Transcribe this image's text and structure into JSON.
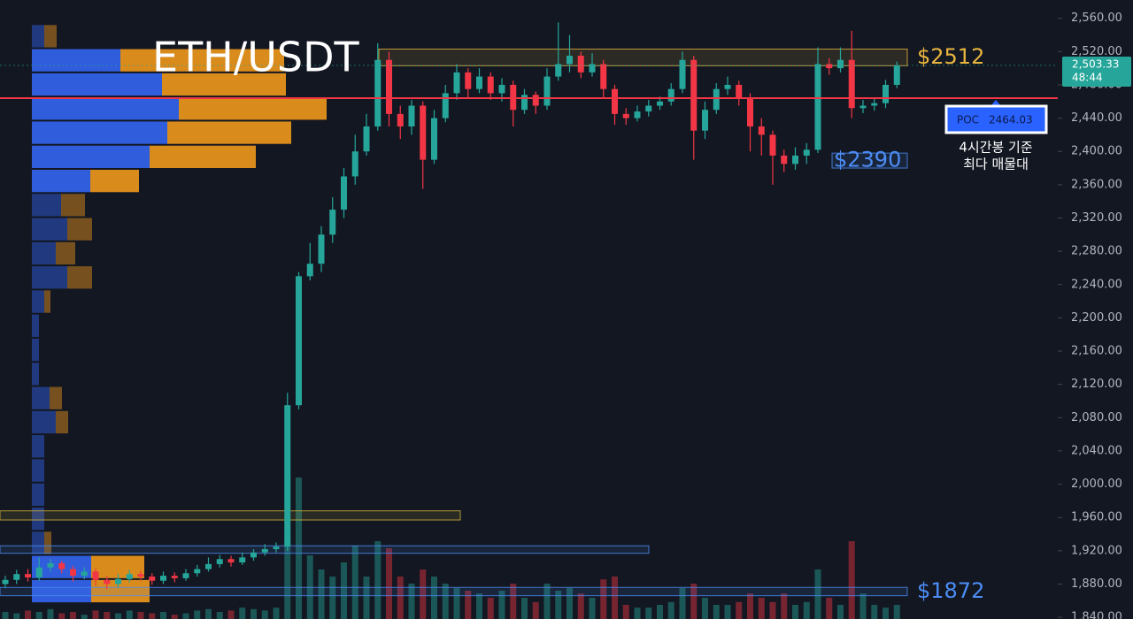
{
  "chart_data": {
    "type": "candlestick",
    "title": "ETH/USDT",
    "ylim": [
      1838,
      2582
    ],
    "yticks": [
      {
        "value": 1840,
        "label": "1,840.00"
      },
      {
        "value": 1880,
        "label": "1,880.00"
      },
      {
        "value": 1920,
        "label": "1,920.00"
      },
      {
        "value": 1960,
        "label": "1,960.00"
      },
      {
        "value": 2000,
        "label": "2,000.00"
      },
      {
        "value": 2040,
        "label": "2,040.00"
      },
      {
        "value": 2080,
        "label": "2,080.00"
      },
      {
        "value": 2120,
        "label": "2,120.00"
      },
      {
        "value": 2160,
        "label": "2,160.00"
      },
      {
        "value": 2200,
        "label": "2,200.00"
      },
      {
        "value": 2240,
        "label": "2,240.00"
      },
      {
        "value": 2280,
        "label": "2,280.00"
      },
      {
        "value": 2320,
        "label": "2,320.00"
      },
      {
        "value": 2360,
        "label": "2,360.00"
      },
      {
        "value": 2400,
        "label": "2,400.00"
      },
      {
        "value": 2440,
        "label": "2,440.00"
      },
      {
        "value": 2480,
        "label": "2,480.00"
      },
      {
        "value": 2520,
        "label": "2,520.00"
      },
      {
        "value": 2560,
        "label": "2,560.00"
      }
    ],
    "up_color": "#26a69a",
    "down_color": "#f23645",
    "open": [
      1880,
      1885,
      1892,
      1888,
      1900,
      1905,
      1898,
      1890,
      1895,
      1885,
      1880,
      1886,
      1892,
      1889,
      1884,
      1890,
      1887,
      1893,
      1898,
      1904,
      1910,
      1906,
      1912,
      1918,
      1922,
      1925,
      2095,
      2250,
      2265,
      2300,
      2330,
      2370,
      2400,
      2430,
      2510,
      2445,
      2430,
      2455,
      2390,
      2440,
      2470,
      2495,
      2475,
      2490,
      2470,
      2480,
      2450,
      2468,
      2455,
      2490,
      2505,
      2515,
      2495,
      2505,
      2475,
      2445,
      2440,
      2448,
      2455,
      2460,
      2475,
      2510,
      2425,
      2450,
      2475,
      2480,
      2465,
      2430,
      2420,
      2395,
      2385,
      2395,
      2402,
      2505,
      2500,
      2510,
      2452,
      2455,
      2458,
      2480
    ],
    "high": [
      1890,
      1897,
      1898,
      1912,
      1910,
      1908,
      1902,
      1900,
      1899,
      1890,
      1892,
      1897,
      1896,
      1893,
      1895,
      1894,
      1898,
      1903,
      1912,
      1915,
      1914,
      1918,
      1922,
      1928,
      1930,
      2110,
      2255,
      2290,
      2310,
      2345,
      2380,
      2420,
      2445,
      2530,
      2520,
      2455,
      2462,
      2460,
      2450,
      2480,
      2505,
      2500,
      2500,
      2495,
      2488,
      2485,
      2475,
      2472,
      2500,
      2555,
      2540,
      2520,
      2518,
      2510,
      2480,
      2452,
      2455,
      2462,
      2466,
      2482,
      2520,
      2515,
      2460,
      2482,
      2490,
      2485,
      2470,
      2440,
      2425,
      2402,
      2405,
      2410,
      2525,
      2512,
      2525,
      2545,
      2462,
      2464,
      2486,
      2508
    ],
    "low": [
      1875,
      1880,
      1883,
      1884,
      1895,
      1893,
      1883,
      1886,
      1878,
      1874,
      1876,
      1882,
      1884,
      1879,
      1880,
      1882,
      1884,
      1889,
      1895,
      1900,
      1901,
      1903,
      1908,
      1914,
      1918,
      1920,
      2090,
      2245,
      2255,
      2290,
      2320,
      2360,
      2395,
      2425,
      2430,
      2415,
      2420,
      2355,
      2385,
      2435,
      2462,
      2465,
      2470,
      2462,
      2460,
      2430,
      2445,
      2445,
      2450,
      2485,
      2495,
      2488,
      2490,
      2465,
      2432,
      2432,
      2436,
      2442,
      2450,
      2455,
      2470,
      2390,
      2415,
      2445,
      2468,
      2455,
      2400,
      2395,
      2360,
      2375,
      2378,
      2385,
      2398,
      2492,
      2495,
      2440,
      2446,
      2449,
      2452,
      2476
    ],
    "close": [
      1885,
      1892,
      1888,
      1900,
      1905,
      1898,
      1890,
      1895,
      1885,
      1880,
      1886,
      1892,
      1889,
      1884,
      1890,
      1887,
      1893,
      1898,
      1904,
      1910,
      1906,
      1912,
      1918,
      1922,
      1925,
      2095,
      2250,
      2265,
      2300,
      2330,
      2370,
      2400,
      2430,
      2510,
      2445,
      2430,
      2455,
      2390,
      2440,
      2470,
      2495,
      2475,
      2490,
      2470,
      2480,
      2450,
      2468,
      2455,
      2490,
      2505,
      2515,
      2495,
      2505,
      2475,
      2445,
      2440,
      2448,
      2455,
      2460,
      2475,
      2510,
      2425,
      2450,
      2475,
      2480,
      2465,
      2430,
      2420,
      2395,
      2385,
      2395,
      2402,
      2505,
      2500,
      2510,
      2452,
      2455,
      2458,
      2480,
      2503.33
    ],
    "volume": [
      5,
      4,
      6,
      5,
      7,
      4,
      5,
      3,
      6,
      5,
      4,
      6,
      5,
      4,
      5,
      3,
      4,
      6,
      7,
      5,
      6,
      8,
      7,
      6,
      8,
      55,
      100,
      45,
      35,
      30,
      40,
      52,
      30,
      55,
      50,
      30,
      25,
      35,
      30,
      25,
      22,
      20,
      18,
      15,
      20,
      25,
      15,
      12,
      25,
      20,
      22,
      18,
      15,
      28,
      30,
      10,
      8,
      8,
      10,
      12,
      22,
      25,
      15,
      10,
      10,
      12,
      18,
      15,
      12,
      18,
      10,
      12,
      35,
      15,
      10,
      55,
      18,
      10,
      8,
      10
    ],
    "profile": {
      "buy_color": "#2f5ddb",
      "sell_color": "#d98b1c",
      "bins": [
        1857,
        1886,
        1915,
        1944,
        1973,
        2002,
        2031,
        2060,
        2089,
        2118,
        2147,
        2176,
        2205,
        2234,
        2263,
        2292,
        2321,
        2350,
        2379,
        2408,
        2437,
        2466,
        2495,
        2524,
        2553
      ],
      "buy": [
        67,
        67,
        14,
        14,
        14,
        14,
        14,
        27,
        20,
        8,
        8,
        8,
        14,
        40,
        27,
        40,
        33,
        66,
        133,
        153,
        166,
        147,
        100,
        14
      ],
      "sell": [
        66,
        60,
        8,
        0,
        0,
        0,
        0,
        14,
        14,
        0,
        0,
        0,
        7,
        28,
        22,
        28,
        27,
        55,
        120,
        140,
        167,
        140,
        185,
        14
      ]
    },
    "zones": [
      {
        "label": "$2512",
        "low": 2503,
        "high": 2523,
        "color": "#e8b53e"
      },
      {
        "label": "$2390",
        "low": 2380,
        "high": 2398,
        "color": "#4c8df6"
      },
      {
        "label": "$1872",
        "low": 1866,
        "high": 1876,
        "color": "#4c8df6"
      },
      {
        "low": 1957,
        "high": 1968,
        "color": "#d6b63a"
      },
      {
        "low": 1917,
        "high": 1926,
        "color": "#4c8df6"
      }
    ],
    "poc": {
      "label": "POC",
      "value": 2464.03,
      "color": "#f23645",
      "note": [
        "4시간봉 기준",
        "최다 매물대"
      ]
    },
    "last_price": {
      "value": 2503.33,
      "label": "2,503.33"
    },
    "countdown": "48:44"
  }
}
